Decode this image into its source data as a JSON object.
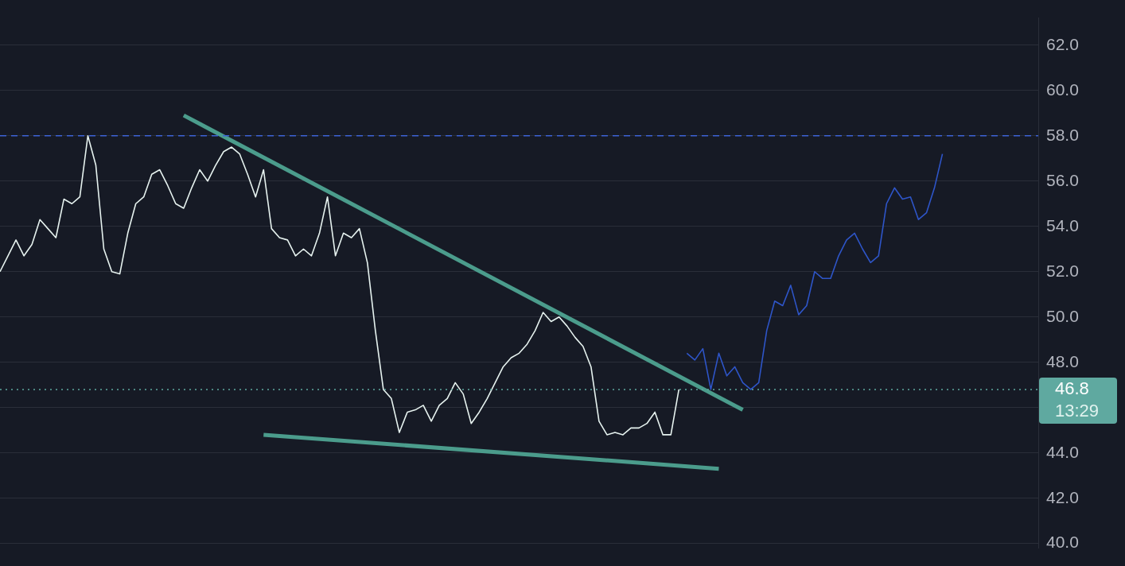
{
  "chart_data": {
    "type": "line",
    "categories": [
      null,
      null,
      null,
      null,
      null,
      null,
      null,
      null,
      null,
      null,
      null,
      null,
      null,
      null,
      null,
      null,
      null,
      null,
      null,
      null,
      null,
      null,
      null,
      null,
      null,
      null,
      null,
      null,
      null,
      null,
      null,
      null,
      null,
      null,
      null,
      null,
      null,
      null,
      null,
      null,
      null,
      null,
      null,
      null,
      null,
      null,
      null,
      null,
      null,
      null,
      null,
      null,
      null,
      null,
      null,
      null,
      null,
      null,
      null,
      null,
      null,
      null,
      null,
      null,
      null,
      null,
      null,
      null,
      null,
      null,
      null,
      null,
      null,
      null,
      null,
      null,
      null,
      null,
      null,
      null,
      null,
      null,
      null,
      null,
      null,
      null,
      null,
      null,
      null,
      null,
      null,
      null,
      null,
      null,
      null,
      null,
      null,
      null,
      null,
      null,
      null,
      null,
      null,
      null,
      null,
      null,
      null,
      null,
      null,
      null,
      null,
      null,
      null,
      null,
      null,
      null,
      null,
      null,
      null,
      null,
      null,
      null,
      null,
      null,
      null,
      null,
      null,
      null,
      null,
      null,
      null
    ],
    "series": [
      {
        "color": "#e6f2ef",
        "values": [
          52.0,
          52.7,
          53.4,
          52.7,
          53.2,
          54.3,
          53.9,
          53.5,
          55.2,
          55.0,
          55.3,
          58.0,
          56.7,
          53.0,
          52.0,
          51.9,
          53.7,
          55.0,
          55.3,
          56.3,
          56.5,
          55.8,
          55.0,
          54.8,
          55.7,
          56.5,
          56.0,
          56.7,
          57.3,
          57.5,
          57.2,
          56.3,
          55.3,
          56.5,
          53.9,
          53.5,
          53.4,
          52.7,
          53.0,
          52.7,
          53.7,
          55.3,
          52.7,
          53.7,
          53.5,
          53.9,
          52.4,
          49.4,
          46.8,
          46.4,
          44.9,
          45.8,
          45.9,
          46.1,
          45.4,
          46.1,
          46.4,
          47.1,
          46.6,
          45.3,
          45.8,
          46.4,
          47.1,
          47.8,
          48.2,
          48.4,
          48.8,
          49.4,
          50.2,
          49.8,
          50.0,
          49.6,
          49.1,
          48.7,
          47.8,
          45.4,
          44.8,
          44.9,
          44.8,
          45.1,
          45.1,
          45.3,
          45.8,
          44.8,
          44.8,
          46.8,
          null,
          null,
          null,
          null,
          null,
          null,
          null,
          null,
          null,
          null,
          null,
          null,
          null,
          null,
          null,
          null,
          null,
          null,
          null,
          null,
          null,
          null,
          null,
          null,
          null,
          null,
          null,
          null,
          null,
          null,
          null,
          null,
          null,
          null,
          null,
          null,
          null,
          null,
          null,
          null,
          null,
          null,
          null,
          null,
          null
        ]
      },
      {
        "color": "#2e55c8",
        "values": [
          null,
          null,
          null,
          null,
          null,
          null,
          null,
          null,
          null,
          null,
          null,
          null,
          null,
          null,
          null,
          null,
          null,
          null,
          null,
          null,
          null,
          null,
          null,
          null,
          null,
          null,
          null,
          null,
          null,
          null,
          null,
          null,
          null,
          null,
          null,
          null,
          null,
          null,
          null,
          null,
          null,
          null,
          null,
          null,
          null,
          null,
          null,
          null,
          null,
          null,
          null,
          null,
          null,
          null,
          null,
          null,
          null,
          null,
          null,
          null,
          null,
          null,
          null,
          null,
          null,
          null,
          null,
          null,
          null,
          null,
          null,
          null,
          null,
          null,
          null,
          null,
          null,
          null,
          null,
          null,
          null,
          null,
          null,
          null,
          null,
          null,
          48.4,
          48.1,
          48.6,
          46.8,
          48.4,
          47.4,
          47.8,
          47.1,
          46.8,
          47.1,
          49.4,
          50.7,
          50.5,
          51.4,
          50.1,
          50.5,
          52.0,
          51.7,
          51.7,
          52.7,
          53.4,
          53.7,
          53.0,
          52.4,
          52.7,
          55.0,
          55.7,
          55.2,
          55.3,
          54.3,
          54.6,
          55.7,
          57.2,
          null,
          null,
          null,
          null,
          null,
          null,
          null,
          null,
          null,
          null,
          null,
          null
        ]
      },
      {
        "color": "#4b9c8c",
        "values": [
          null,
          null,
          null,
          null,
          null,
          null,
          null,
          null,
          null,
          null,
          null,
          null,
          null,
          null,
          null,
          null,
          null,
          null,
          null,
          null,
          null,
          null,
          null,
          58.9,
          null,
          null,
          null,
          null,
          null,
          null,
          null,
          null,
          null,
          null,
          null,
          null,
          null,
          null,
          null,
          null,
          null,
          null,
          null,
          null,
          null,
          null,
          null,
          null,
          null,
          null,
          null,
          null,
          null,
          null,
          null,
          null,
          null,
          null,
          null,
          null,
          null,
          null,
          null,
          null,
          null,
          null,
          null,
          null,
          null,
          null,
          null,
          null,
          null,
          null,
          null,
          null,
          null,
          null,
          null,
          null,
          null,
          null,
          null,
          null,
          null,
          null,
          null,
          null,
          null,
          null,
          null,
          null,
          null,
          45.9,
          null,
          null,
          null,
          null,
          null,
          null,
          null,
          null,
          null,
          null,
          null,
          null,
          null,
          null,
          null,
          null,
          null,
          null,
          null,
          null,
          null,
          null,
          null,
          null,
          null,
          null,
          null,
          null,
          null,
          null,
          null,
          null,
          null,
          null,
          null,
          null,
          null
        ]
      },
      {
        "color": "#4b9c8c",
        "values": [
          null,
          null,
          null,
          null,
          null,
          null,
          null,
          null,
          null,
          null,
          null,
          null,
          null,
          null,
          null,
          null,
          null,
          null,
          null,
          null,
          null,
          null,
          null,
          null,
          null,
          null,
          null,
          null,
          null,
          null,
          null,
          null,
          null,
          44.8,
          null,
          null,
          null,
          null,
          null,
          null,
          null,
          null,
          null,
          null,
          null,
          null,
          null,
          null,
          null,
          null,
          null,
          null,
          null,
          null,
          null,
          null,
          null,
          null,
          null,
          null,
          null,
          null,
          null,
          null,
          null,
          null,
          null,
          null,
          null,
          null,
          null,
          null,
          null,
          null,
          null,
          null,
          null,
          null,
          null,
          null,
          null,
          null,
          null,
          null,
          null,
          null,
          null,
          null,
          null,
          null,
          43.3,
          null,
          null,
          null,
          null,
          null,
          null,
          null,
          null,
          null,
          null,
          null,
          null,
          null,
          null,
          null,
          null,
          null,
          null,
          null,
          null,
          null,
          null,
          null,
          null,
          null,
          null,
          null,
          null,
          null,
          null,
          null,
          null,
          null,
          null,
          null,
          null,
          null,
          null,
          null,
          null
        ]
      }
    ],
    "ylim": [
      39.8,
      63.2
    ],
    "yticks": [
      {
        "value": 40,
        "label": "40.0"
      },
      {
        "value": 42,
        "label": "42.0"
      },
      {
        "value": 44,
        "label": "44.0"
      },
      {
        "value": 46,
        "label": null
      },
      {
        "value": 48,
        "label": "48.0"
      },
      {
        "value": 50,
        "label": "50.0"
      },
      {
        "value": 52,
        "label": "52.0"
      },
      {
        "value": 54,
        "label": "54.0"
      },
      {
        "value": 56,
        "label": "56.0"
      },
      {
        "value": 58,
        "label": "58.0"
      },
      {
        "value": 60,
        "label": "60.0"
      },
      {
        "value": 62,
        "label": "62.0"
      }
    ],
    "grid": "y",
    "tick_labels": "y",
    "marker": "none",
    "ref_lines": [
      {
        "axis": "y",
        "value": 58,
        "color": "#3d63d6",
        "line_style": "dashed"
      },
      {
        "axis": "y",
        "value": 46.8,
        "label": "46.8",
        "color": "#5fa9a0",
        "line_style": "dotted"
      }
    ],
    "annotations": [
      "13:29"
    ]
  }
}
